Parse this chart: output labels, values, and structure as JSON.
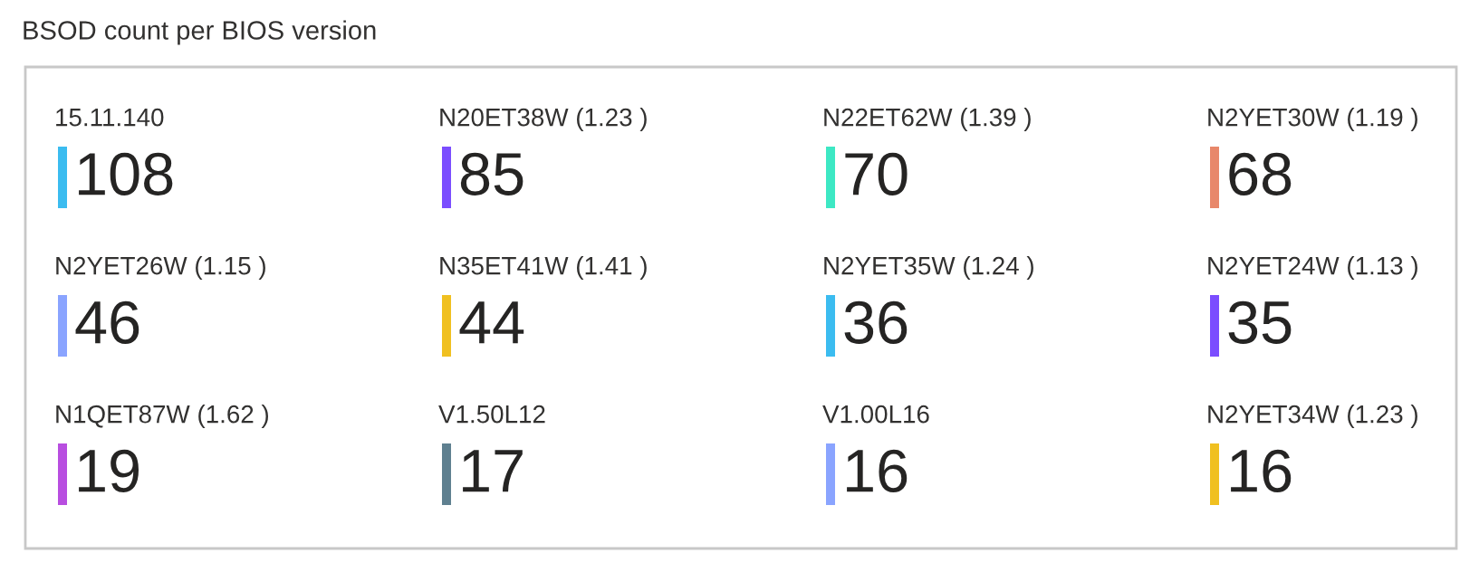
{
  "chart_data": {
    "type": "other",
    "title": "BSOD count per BIOS version",
    "categories": [
      "15.11.140",
      "N20ET38W (1.23 )",
      "N22ET62W (1.39 )",
      "N2YET30W (1.19 )",
      "N2YET26W (1.15 )",
      "N35ET41W (1.41 )",
      "N2YET35W (1.24 )",
      "N2YET24W (1.13 )",
      "N1QET87W (1.62 )",
      "V1.50L12",
      "V1.00L16",
      "N2YET34W (1.23 )"
    ],
    "values": [
      108,
      85,
      70,
      68,
      46,
      44,
      36,
      35,
      19,
      17,
      16,
      16
    ],
    "data_labels": true,
    "colors": [
      "#3bbcf0",
      "#7b4dff",
      "#3de8c4",
      "#e8876a",
      "#8aa4ff",
      "#f0c020",
      "#3bbcf0",
      "#7b4dff",
      "#b84ee0",
      "#5f8090",
      "#8aa4ff",
      "#f0c020"
    ]
  }
}
